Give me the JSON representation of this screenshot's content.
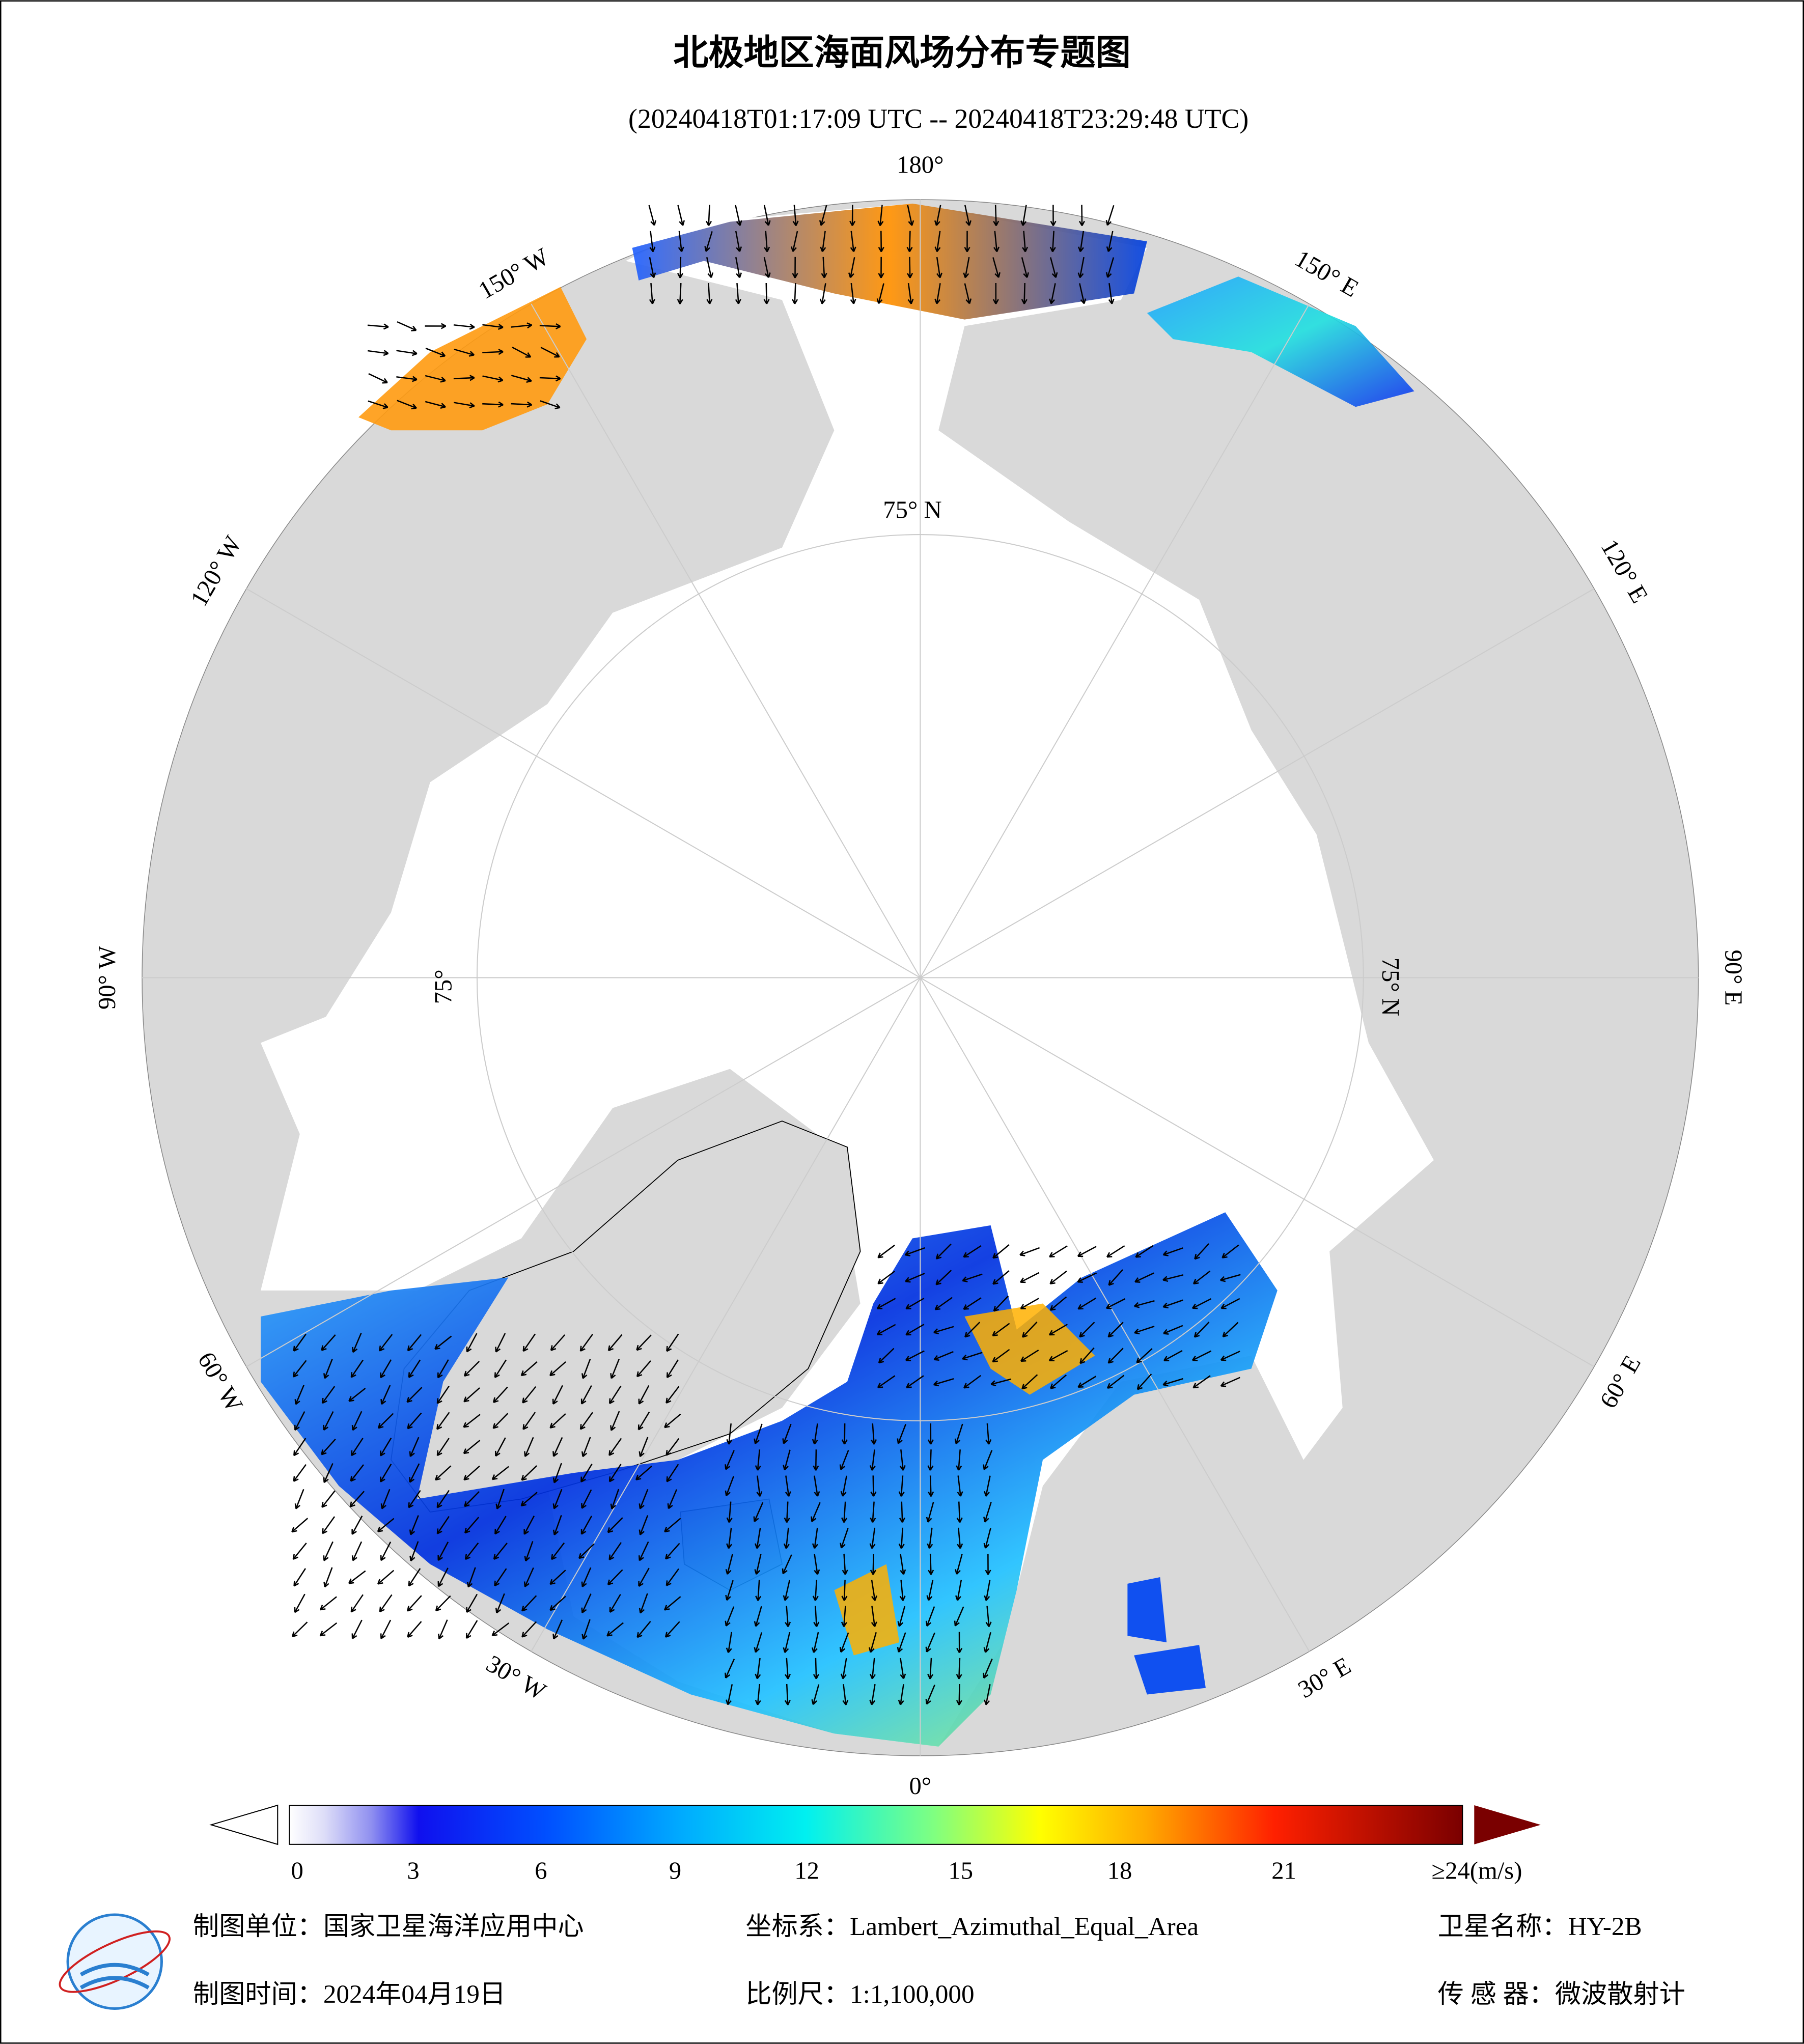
{
  "header": {
    "title": "北极地区海面风场分布专题图",
    "subtitle": "(20240418T01:17:09 UTC -- 20240418T23:29:48 UTC)"
  },
  "map": {
    "longitude_labels": [
      "180°",
      "150° E",
      "120° E",
      "90° E",
      "60° E",
      "30° E",
      "0°",
      "30° W",
      "60° W",
      "90° W",
      "120° W",
      "150° W"
    ],
    "latitude_labels": [
      "75° N",
      "75° N",
      "75°"
    ]
  },
  "colorbar": {
    "ticks": [
      0,
      3,
      6,
      9,
      12,
      15,
      18,
      21
    ],
    "max_label": "≥24(m/s)"
  },
  "footer": {
    "unit": "制图单位：国家卫星海洋应用中心",
    "crs": "坐标系：Lambert_Azimuthal_Equal_Area",
    "satellite": "卫星名称：HY-2B",
    "date": "制图时间：2024年04月19日",
    "scale": "比例尺：1:1,100,000",
    "sensor": "传 感 器：微波散射计"
  }
}
